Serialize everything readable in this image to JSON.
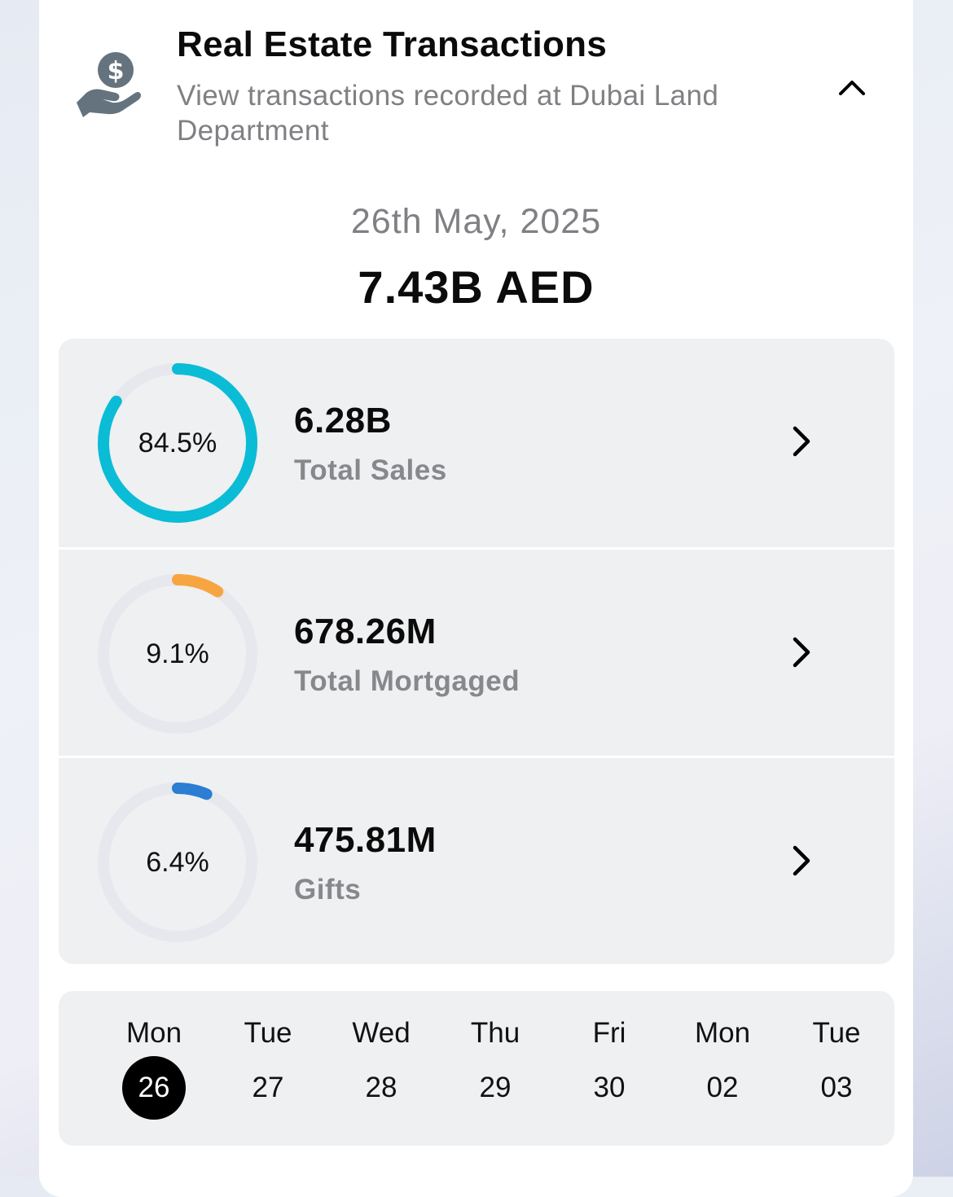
{
  "header": {
    "title": "Real Estate Transactions",
    "subtitle": "View transactions recorded at Dubai Land Department",
    "icon": "hand-dollar-icon",
    "collapse_icon": "chevron-up-icon"
  },
  "summary": {
    "date": "26th May, 2025",
    "total": "7.43B AED"
  },
  "stats": [
    {
      "percent_label": "84.5%",
      "percent": 84.5,
      "value": "6.28B",
      "label": "Total Sales",
      "color": "#0bbcd6"
    },
    {
      "percent_label": "9.1%",
      "percent": 9.1,
      "value": "678.26M",
      "label": "Total Mortgaged",
      "color": "#f7a541"
    },
    {
      "percent_label": "6.4%",
      "percent": 6.4,
      "value": "475.81M",
      "label": "Gifts",
      "color": "#2b7ed1"
    }
  ],
  "ring_track_color": "#e6e8ee",
  "days": [
    {
      "name": "Mon",
      "num": "26",
      "selected": true
    },
    {
      "name": "Tue",
      "num": "27"
    },
    {
      "name": "Wed",
      "num": "28"
    },
    {
      "name": "Thu",
      "num": "29"
    },
    {
      "name": "Fri",
      "num": "30"
    },
    {
      "name": "Mon",
      "num": "02"
    },
    {
      "name": "Tue",
      "num": "03"
    }
  ]
}
